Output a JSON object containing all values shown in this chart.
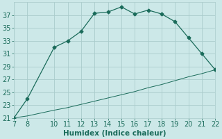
{
  "xlabel": "Humidex (Indice chaleur)",
  "background_color": "#cce8e8",
  "grid_color": "#aacccc",
  "line_color": "#1a6b5a",
  "x_main": [
    7,
    8,
    10,
    11,
    12,
    13,
    14,
    15,
    16,
    17,
    18,
    19,
    20,
    21,
    22
  ],
  "y_main": [
    21,
    24,
    32,
    33,
    34.5,
    37.3,
    37.5,
    38.3,
    37.2,
    37.8,
    37.2,
    36.0,
    33.5,
    31.0,
    28.5
  ],
  "x_ref": [
    7,
    8,
    10,
    11,
    12,
    13,
    14,
    15,
    16,
    17,
    18,
    19,
    20,
    21,
    22
  ],
  "y_ref": [
    21,
    21.3,
    22.2,
    22.6,
    23.1,
    23.6,
    24.1,
    24.6,
    25.1,
    25.7,
    26.2,
    26.8,
    27.4,
    27.9,
    28.5
  ],
  "xlim": [
    7,
    22
  ],
  "ylim": [
    21,
    39
  ],
  "xticks": [
    7,
    8,
    10,
    11,
    12,
    13,
    14,
    15,
    16,
    17,
    18,
    19,
    20,
    21,
    22
  ],
  "yticks": [
    21,
    23,
    25,
    27,
    29,
    31,
    33,
    35,
    37
  ],
  "fontsize": 7.5
}
